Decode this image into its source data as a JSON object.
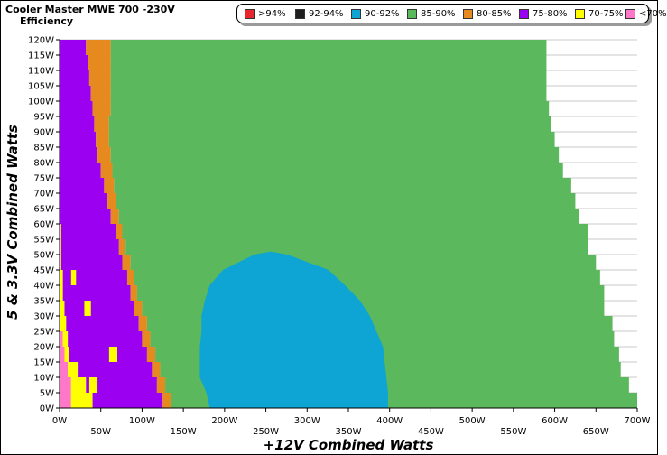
{
  "header": {
    "title": "Cooler Master MWE 700 -230V",
    "subtitle": "Efficiency"
  },
  "legend": [
    {
      "label": ">94%",
      "color": "#e8262b"
    },
    {
      "label": "92-94%",
      "color": "#1e1e1e"
    },
    {
      "label": "90-92%",
      "color": "#0ea5d4"
    },
    {
      "label": "85-90%",
      "color": "#5cb85c"
    },
    {
      "label": "80-85%",
      "color": "#e68a1f"
    },
    {
      "label": "75-80%",
      "color": "#9b00f0"
    },
    {
      "label": "70-75%",
      "color": "#ffff00"
    },
    {
      "label": "<70%",
      "color": "#ff77c8"
    }
  ],
  "chart_data": {
    "type": "heatmap",
    "title": "Cooler Master MWE 700 -230V",
    "subtitle": "Efficiency",
    "xlabel": "+12V Combined Watts",
    "ylabel": "5 & 3.3V Combined Watts",
    "xlim": [
      0,
      700
    ],
    "ylim": [
      0,
      120
    ],
    "x_ticks": [
      "0W",
      "50W",
      "100W",
      "150W",
      "200W",
      "250W",
      "300W",
      "350W",
      "400W",
      "450W",
      "500W",
      "550W",
      "600W",
      "650W",
      "700W"
    ],
    "y_ticks": [
      "0W",
      "5W",
      "10W",
      "15W",
      "20W",
      "25W",
      "30W",
      "35W",
      "40W",
      "45W",
      "50W",
      "55W",
      "60W",
      "65W",
      "70W",
      "75W",
      "80W",
      "85W",
      "90W",
      "95W",
      "100W",
      "105W",
      "110W",
      "115W",
      "120W"
    ],
    "colors": {
      "lt70": "#ff77c8",
      "r70_75": "#ffff00",
      "r75_80": "#9b00f0",
      "r80_85": "#e68a1f",
      "r85_90": "#5cb85c",
      "r90_92": "#0ea5d4"
    },
    "zone_boundaries": {
      "y": [
        0,
        5,
        10,
        15,
        20,
        25,
        30,
        35,
        40,
        45,
        50,
        55,
        60,
        65,
        70,
        75,
        80,
        85,
        90,
        95,
        100,
        105,
        110,
        115,
        120
      ],
      "max_load_x": [
        700,
        690,
        680,
        678,
        672,
        670,
        660,
        660,
        655,
        650,
        640,
        640,
        630,
        625,
        620,
        610,
        605,
        600,
        596,
        593,
        590,
        590,
        590,
        590,
        590
      ],
      "lt70_end_x": [
        14,
        14,
        10,
        6,
        4,
        0,
        0,
        0,
        0,
        0,
        0,
        0,
        0,
        0,
        0,
        0,
        0,
        0,
        0,
        0,
        0,
        0,
        0,
        0,
        0
      ],
      "r70_75_end_x": [
        40,
        32,
        22,
        12,
        10,
        8,
        6,
        4,
        4,
        2,
        2,
        2,
        0,
        0,
        0,
        0,
        0,
        0,
        0,
        0,
        0,
        0,
        0,
        0,
        0
      ],
      "r75_80_end_x": [
        125,
        118,
        112,
        106,
        100,
        96,
        90,
        86,
        82,
        76,
        72,
        68,
        62,
        58,
        54,
        50,
        46,
        44,
        42,
        40,
        38,
        36,
        34,
        32,
        30
      ],
      "r80_85_end_x": [
        135,
        128,
        122,
        116,
        110,
        106,
        100,
        94,
        90,
        86,
        80,
        76,
        72,
        68,
        66,
        64,
        62,
        60,
        60,
        62,
        62,
        62,
        62,
        62,
        62
      ],
      "blue_zone": {
        "y": [
          0,
          5,
          10,
          15,
          20,
          25,
          30,
          35,
          40,
          45,
          50
        ],
        "x_start": [
          182,
          178,
          170,
          170,
          170,
          172,
          172,
          176,
          182,
          198,
          236
        ],
        "x_end": [
          398,
          398,
          396,
          394,
          392,
          384,
          376,
          364,
          346,
          326,
          276
        ]
      }
    }
  }
}
